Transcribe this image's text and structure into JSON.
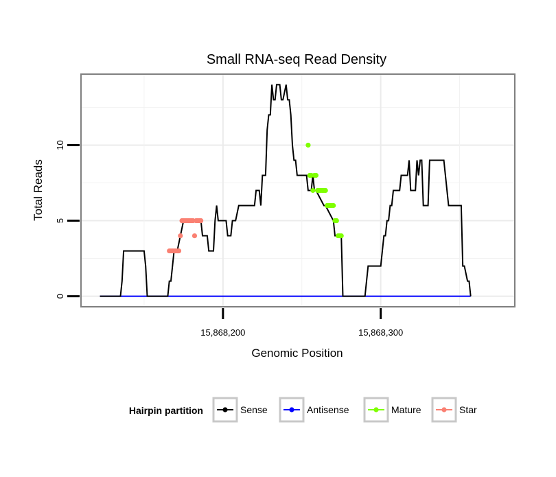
{
  "chart_data": {
    "type": "line",
    "title": "Small RNA-seq Read Density",
    "xlabel": "Genomic Position",
    "ylabel": "Total Reads",
    "xlim": [
      15868110,
      15868385
    ],
    "ylim": [
      -0.7,
      14.7
    ],
    "x_ticks": [
      15868200,
      15868300
    ],
    "x_tick_labels": [
      "15,868,200",
      "15,868,300"
    ],
    "y_ticks": [
      0,
      5,
      10
    ],
    "y_tick_labels": [
      "0",
      "5",
      "10"
    ],
    "grid": true,
    "legend": {
      "title": "Hairpin partition",
      "position": "bottom",
      "entries": [
        "Sense",
        "Antisense",
        "Mature",
        "Star"
      ]
    },
    "colors": {
      "Sense": "#000000",
      "Antisense": "#0000ff",
      "Mature": "#7fff00",
      "Star": "#fa8072"
    },
    "series": [
      {
        "name": "Sense",
        "kind": "line",
        "x": [
          15868122,
          15868135,
          15868136,
          15868137,
          15868150,
          15868151,
          15868152,
          15868165,
          15868166,
          15868167,
          15868168,
          15868169,
          15868171,
          15868173,
          15868175,
          15868176,
          15868186,
          15868187,
          15868190,
          15868191,
          15868193,
          15868194,
          15868195,
          15868196,
          15868197,
          15868202,
          15868203,
          15868205,
          15868206,
          15868208,
          15868210,
          15868212,
          15868213,
          15868220,
          15868221,
          15868223,
          15868224,
          15868225,
          15868227,
          15868228,
          15868229,
          15868230,
          15868231,
          15868232,
          15868233,
          15868234,
          15868236,
          15868237,
          15868238,
          15868240,
          15868241,
          15868242,
          15868243,
          15868244,
          15868245,
          15868246,
          15868247,
          15868248,
          15868249,
          15868250,
          15868251,
          15868253,
          15868254,
          15868255,
          15868256,
          15868257,
          15868258,
          15868259,
          15868264,
          15868265,
          15868270,
          15868271,
          15868275,
          15868276,
          15868278,
          15868279,
          15868280,
          15868290,
          15868291,
          15868292,
          15868300,
          15868301,
          15868302,
          15868303,
          15868304,
          15868305,
          15868306,
          15868307,
          15868308,
          15868309,
          15868312,
          15868313,
          15868317,
          15868318,
          15868319,
          15868320,
          15868322,
          15868323,
          15868324,
          15868325,
          15868326,
          15868327,
          15868330,
          15868331,
          15868333,
          15868334,
          15868340,
          15868341,
          15868342,
          15868343,
          15868344,
          15868345,
          15868351,
          15868352,
          15868353,
          15868355,
          15868356,
          15868357
        ],
        "y": [
          0,
          0,
          1,
          3,
          3,
          2,
          0,
          0,
          1,
          1,
          2,
          3,
          3,
          4,
          5,
          5,
          5,
          4,
          4,
          3,
          3,
          3,
          5,
          6,
          5,
          5,
          4,
          4,
          5,
          5,
          6,
          6,
          6,
          6,
          7,
          7,
          6,
          8,
          8,
          11,
          12,
          12,
          14,
          13,
          13,
          14,
          14,
          13,
          13,
          14,
          13,
          13,
          12,
          10,
          9,
          9,
          8,
          8,
          8,
          8,
          8,
          8,
          7,
          7,
          7,
          8,
          7,
          7,
          6,
          6,
          5,
          4,
          4,
          0,
          0,
          0,
          0,
          0,
          1,
          2,
          2,
          3,
          4,
          4,
          5,
          5,
          6,
          6,
          7,
          7,
          7,
          8,
          8,
          9,
          7,
          7,
          7,
          9,
          8,
          9,
          9,
          6,
          6,
          9,
          9,
          9,
          9,
          8,
          7,
          6,
          6,
          6,
          6,
          2,
          2,
          1,
          1,
          0
        ]
      },
      {
        "name": "Antisense",
        "kind": "line",
        "x": [
          15868122,
          15868357
        ],
        "y": [
          0,
          0
        ]
      },
      {
        "name": "Mature",
        "kind": "points",
        "x": [
          15868254,
          15868255,
          15868256,
          15868257,
          15868258,
          15868259,
          15868260,
          15868261,
          15868262,
          15868263,
          15868264,
          15868265,
          15868266,
          15868267,
          15868268,
          15868269,
          15868270,
          15868271,
          15868272,
          15868273,
          15868274,
          15868275
        ],
        "y": [
          10,
          8,
          8,
          7,
          8,
          8,
          7,
          7,
          7,
          7,
          7,
          7,
          6,
          6,
          6,
          6,
          6,
          5,
          5,
          4,
          4,
          4
        ]
      },
      {
        "name": "Star",
        "kind": "points",
        "x": [
          15868166,
          15868167,
          15868168,
          15868169,
          15868170,
          15868171,
          15868172,
          15868173,
          15868174,
          15868175,
          15868176,
          15868177,
          15868178,
          15868179,
          15868180,
          15868181,
          15868182,
          15868183,
          15868184,
          15868185,
          15868186
        ],
        "y": [
          3,
          3,
          3,
          3,
          3,
          3,
          3,
          4,
          5,
          5,
          5,
          5,
          5,
          5,
          5,
          5,
          4,
          5,
          5,
          5,
          5
        ]
      }
    ]
  }
}
